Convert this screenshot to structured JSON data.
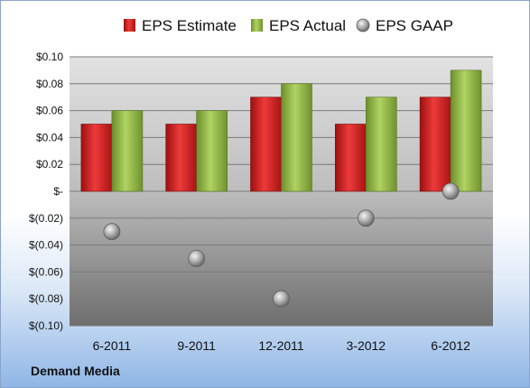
{
  "chart_data": {
    "type": "bar",
    "categories": [
      "6-2011",
      "9-2011",
      "12-2011",
      "3-2012",
      "6-2012"
    ],
    "series": [
      {
        "name": "EPS Estimate",
        "kind": "bar",
        "color": "#d42a2a",
        "values": [
          0.05,
          0.05,
          0.07,
          0.05,
          0.07
        ]
      },
      {
        "name": "EPS Actual",
        "kind": "bar",
        "color": "#93b84a",
        "values": [
          0.06,
          0.06,
          0.08,
          0.07,
          0.09
        ]
      },
      {
        "name": "EPS GAAP",
        "kind": "scatter",
        "color": "#a9a9a9",
        "values": [
          -0.03,
          -0.05,
          -0.08,
          -0.02,
          0.0
        ]
      }
    ],
    "ylim": [
      -0.1,
      0.1
    ],
    "yticks": [
      {
        "value": 0.1,
        "label": "$0.10"
      },
      {
        "value": 0.08,
        "label": "$0.08"
      },
      {
        "value": 0.06,
        "label": "$0.06"
      },
      {
        "value": 0.04,
        "label": "$0.04"
      },
      {
        "value": 0.02,
        "label": "$0.02"
      },
      {
        "value": 0.0,
        "label": "$-"
      },
      {
        "value": -0.02,
        "label": "$(0.02)"
      },
      {
        "value": -0.04,
        "label": "$(0.04)"
      },
      {
        "value": -0.06,
        "label": "$(0.06)"
      },
      {
        "value": -0.08,
        "label": "$(0.08)"
      },
      {
        "value": -0.1,
        "label": "$(0.10)"
      }
    ],
    "grid": true,
    "legend_position": "top"
  },
  "company_name": "Demand Media"
}
